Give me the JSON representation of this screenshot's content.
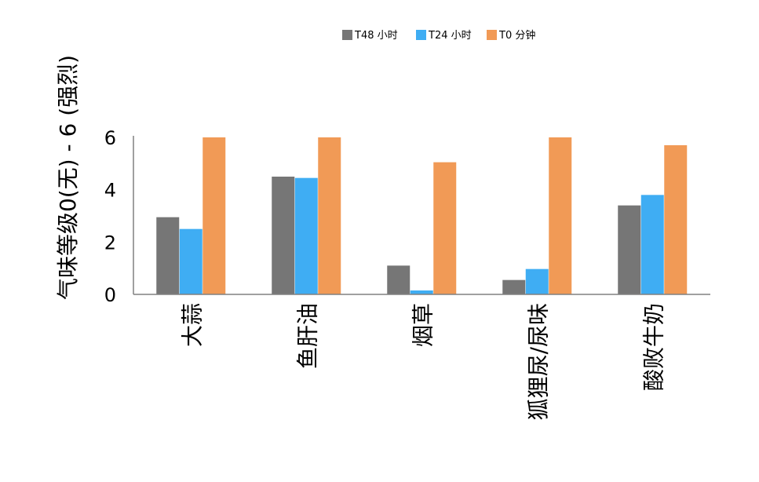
{
  "chart_data": {
    "type": "bar",
    "title": "",
    "xlabel": "",
    "ylabel": "气味等级0(无) - 6 (强烈)",
    "categories": [
      "大蒜",
      "鱼肝油",
      "烟草",
      "狐狸尿/尿味",
      "酸败牛奶"
    ],
    "series": [
      {
        "name": "T48 小时",
        "color": "#767676",
        "values": [
          2.95,
          4.5,
          1.1,
          0.55,
          3.4
        ]
      },
      {
        "name": "T24 小时",
        "color": "#3fadf3",
        "values": [
          2.5,
          4.45,
          0.15,
          0.97,
          3.8
        ]
      },
      {
        "name": "T0 分钟",
        "color": "#f19a56",
        "values": [
          6.0,
          6.0,
          5.05,
          6.0,
          5.7
        ]
      }
    ],
    "ylim": [
      0,
      6
    ],
    "yticks": [
      "0",
      "2",
      "4",
      "6"
    ],
    "grid": false,
    "legend_position": "top-center"
  }
}
